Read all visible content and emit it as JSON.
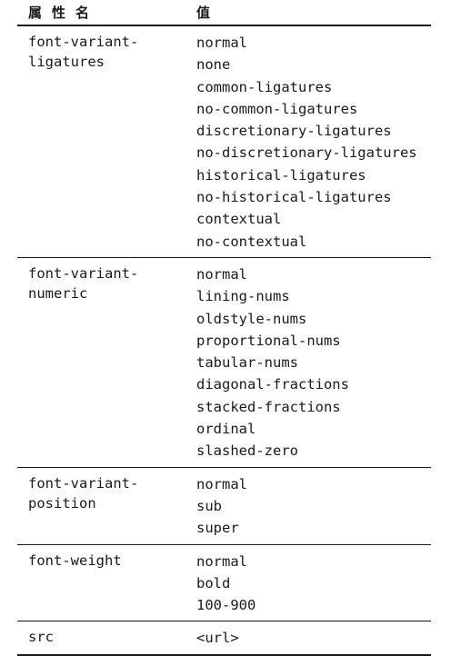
{
  "header": {
    "name_label": "属性名",
    "value_label": "值"
  },
  "rows": [
    {
      "name": "font-variant-\nligatures",
      "values": [
        "normal",
        "none",
        "common-ligatures",
        "no-common-ligatures",
        "discretionary-ligatures",
        "no-discretionary-ligatures",
        "historical-ligatures",
        "no-historical-ligatures",
        "contextual",
        "no-contextual"
      ]
    },
    {
      "name": "font-variant-\nnumeric",
      "values": [
        "normal",
        "lining-nums",
        "oldstyle-nums",
        "proportional-nums",
        "tabular-nums",
        "diagonal-fractions",
        "stacked-fractions",
        "ordinal",
        "slashed-zero"
      ]
    },
    {
      "name": "font-variant-\nposition",
      "values": [
        "normal",
        "sub",
        "super"
      ]
    },
    {
      "name": "font-weight",
      "values": [
        "normal",
        "bold",
        "100-900"
      ]
    },
    {
      "name": "src",
      "values": [
        "<url>"
      ]
    }
  ]
}
